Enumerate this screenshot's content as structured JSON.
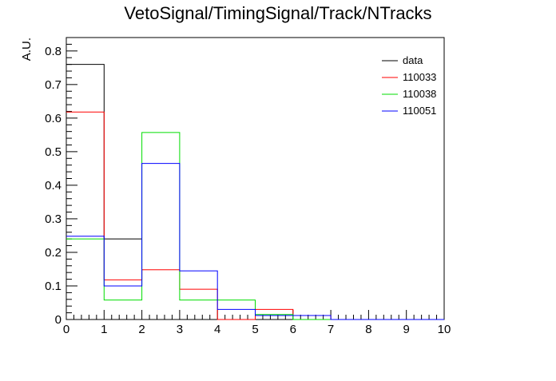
{
  "chart_data": {
    "type": "histogram-step",
    "title": "VetoSignal/TimingSignal/Track/NTracks",
    "xlabel": "",
    "ylabel": "A.U.",
    "xlim": [
      0,
      10
    ],
    "ylim": [
      0,
      0.84
    ],
    "x_ticks": [
      0,
      1,
      2,
      3,
      4,
      5,
      6,
      7,
      8,
      9,
      10
    ],
    "y_ticks": [
      0,
      0.1,
      0.2,
      0.3,
      0.4,
      0.5,
      0.6,
      0.7,
      0.8
    ],
    "y_tick_labels": [
      "0",
      "0.1",
      "0.2",
      "0.3",
      "0.4",
      "0.5",
      "0.6",
      "0.7",
      "0.8"
    ],
    "bin_edges": [
      0,
      1,
      2,
      3,
      4,
      5,
      6,
      7,
      8,
      9,
      10
    ],
    "grid": false,
    "legend_position": "top-right",
    "series": [
      {
        "name": "data",
        "color": "#000000",
        "values": [
          0.76,
          0.24
        ]
      },
      {
        "name": "110033",
        "color": "#ff0000",
        "values": [
          0.618,
          0.118,
          0.148,
          0.09,
          0.0,
          0.03,
          0.012,
          0.0,
          0.0,
          0.0
        ]
      },
      {
        "name": "110038",
        "color": "#00dd00",
        "values": [
          0.24,
          0.058,
          0.557,
          0.058,
          0.058,
          0.015,
          0.0,
          0.0,
          0.0,
          0.0
        ]
      },
      {
        "name": "110051",
        "color": "#0000ff",
        "values": [
          0.248,
          0.1,
          0.465,
          0.145,
          0.03,
          0.012,
          0.012,
          0.0,
          0.0,
          0.0
        ]
      }
    ]
  }
}
